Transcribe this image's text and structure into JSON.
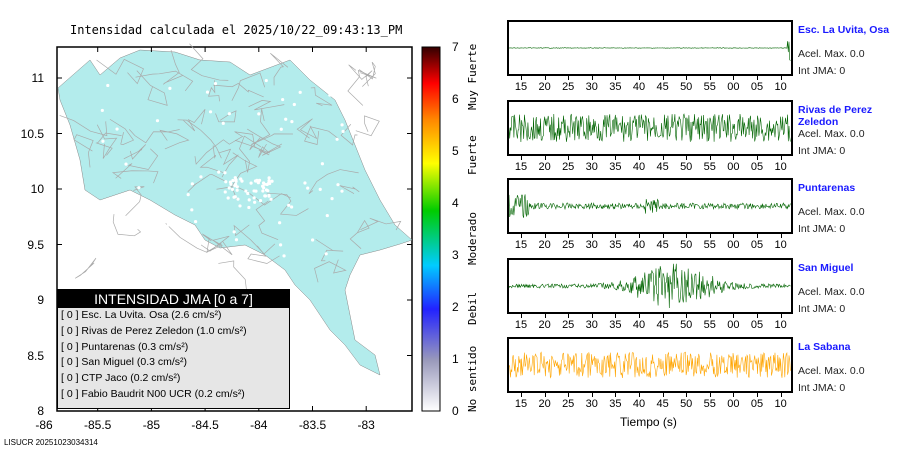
{
  "title": "Intensidad calculada el 2025/10/22_09:43:13_PM",
  "map": {
    "lat_ticks": [
      "11",
      "10.5",
      "10",
      "9.5",
      "9",
      "8.5",
      "8"
    ],
    "lon_ticks": [
      "-86",
      "-85.5",
      "-85",
      "-84.5",
      "-84",
      "-83.5",
      "-83"
    ],
    "land_color": "#b3ecec"
  },
  "colorbar": {
    "ticks": [
      "0",
      "1",
      "2",
      "3",
      "4",
      "5",
      "6",
      "7"
    ],
    "categories": [
      "No sentido",
      "Debil",
      "Moderado",
      "Fuerte",
      "Muy Fuerte"
    ]
  },
  "legend": {
    "title": "INTENSIDAD JMA [0 a 7]",
    "rows": [
      "[ 0 ]  Esc. La Uvita. Osa (2.6 cm/s²)",
      "[ 0 ]  Rivas de Perez Zeledon (1.0 cm/s²)",
      "[ 0 ]  Puntarenas (0.3 cm/s²)",
      "[ 0 ]  San Miguel (0.3 cm/s²)",
      "[ 0 ]  CTP Jaco (0.2 cm/s²)",
      "[ 0 ]  Fabio Baudrit N00 UCR (0.2 cm/s²)"
    ]
  },
  "stations": [
    {
      "name": "Esc. La Uvita, Osa",
      "acel": "Acel. Max. 0.0",
      "int": "Int JMA: 0",
      "color": "#006400"
    },
    {
      "name": "Rivas de Perez Zeledon",
      "acel": "Acel. Max. 0.0",
      "int": "Int JMA: 0",
      "color": "#006400"
    },
    {
      "name": "Puntarenas",
      "acel": "Acel. Max. 0.0",
      "int": "Int JMA: 0",
      "color": "#006400"
    },
    {
      "name": "San Miguel",
      "acel": "Acel. Max. 0.0",
      "int": "Int JMA: 0",
      "color": "#006400"
    },
    {
      "name": "La Sabana",
      "acel": "Acel. Max. 0.0",
      "int": "Int JMA: 0",
      "color": "#ffa500"
    }
  ],
  "time_ticks": [
    "15",
    "20",
    "25",
    "30",
    "35",
    "40",
    "45",
    "50",
    "55",
    "00",
    "05",
    "10"
  ],
  "xlabel": "Tiempo (s)",
  "footer": "LISUCR 20251023034314"
}
